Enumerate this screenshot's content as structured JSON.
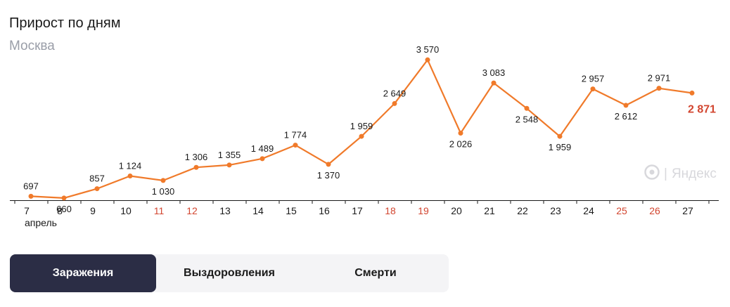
{
  "header": {
    "title": "Прирост по дням",
    "subtitle": "Москва"
  },
  "tabs": [
    {
      "label": "Заражения",
      "active": true
    },
    {
      "label": "Выздоровления",
      "active": false
    },
    {
      "label": "Смерти",
      "active": false
    }
  ],
  "watermark": {
    "text": "Яндекс",
    "icon": "yandex-logo-icon"
  },
  "colors": {
    "line": "#f07a2a",
    "weekend": "#d2452f",
    "last_value": "#d2452f",
    "text": "#1a1a1a",
    "tab_active_bg": "#2b2d45"
  },
  "chart_data": {
    "type": "line",
    "title": "Прирост по дням",
    "subtitle": "Москва",
    "month_label": "апрель",
    "x": [
      "7",
      "8",
      "9",
      "10",
      "11",
      "12",
      "13",
      "14",
      "15",
      "16",
      "17",
      "18",
      "19",
      "20",
      "21",
      "22",
      "23",
      "24",
      "25",
      "26",
      "27"
    ],
    "weekend": [
      false,
      false,
      false,
      false,
      true,
      true,
      false,
      false,
      false,
      false,
      false,
      true,
      true,
      false,
      false,
      false,
      false,
      false,
      true,
      true,
      false
    ],
    "series": [
      {
        "values": [
          697,
          660,
          857,
          1124,
          1030,
          1306,
          1355,
          1489,
          1774,
          1370,
          1959,
          2649,
          3570,
          2026,
          3083,
          2548,
          1959,
          2957,
          2612,
          2971,
          2871
        ]
      }
    ],
    "data_labels": [
      "697",
      "660",
      "857",
      "1 124",
      "1 030",
      "1 306",
      "1 355",
      "1 489",
      "1 774",
      "1 370",
      "1 959",
      "2 649",
      "3 570",
      "2 026",
      "3 083",
      "2 548",
      "1 959",
      "2 957",
      "2 612",
      "2 971",
      "2 871"
    ],
    "label_position": [
      "above",
      "below",
      "above",
      "above",
      "below",
      "above",
      "above",
      "above",
      "above",
      "below",
      "above",
      "above",
      "above",
      "below",
      "above",
      "below",
      "below",
      "above",
      "below",
      "above",
      "right"
    ],
    "ylim": [
      0,
      4000
    ],
    "grid": false,
    "legend": "none"
  }
}
